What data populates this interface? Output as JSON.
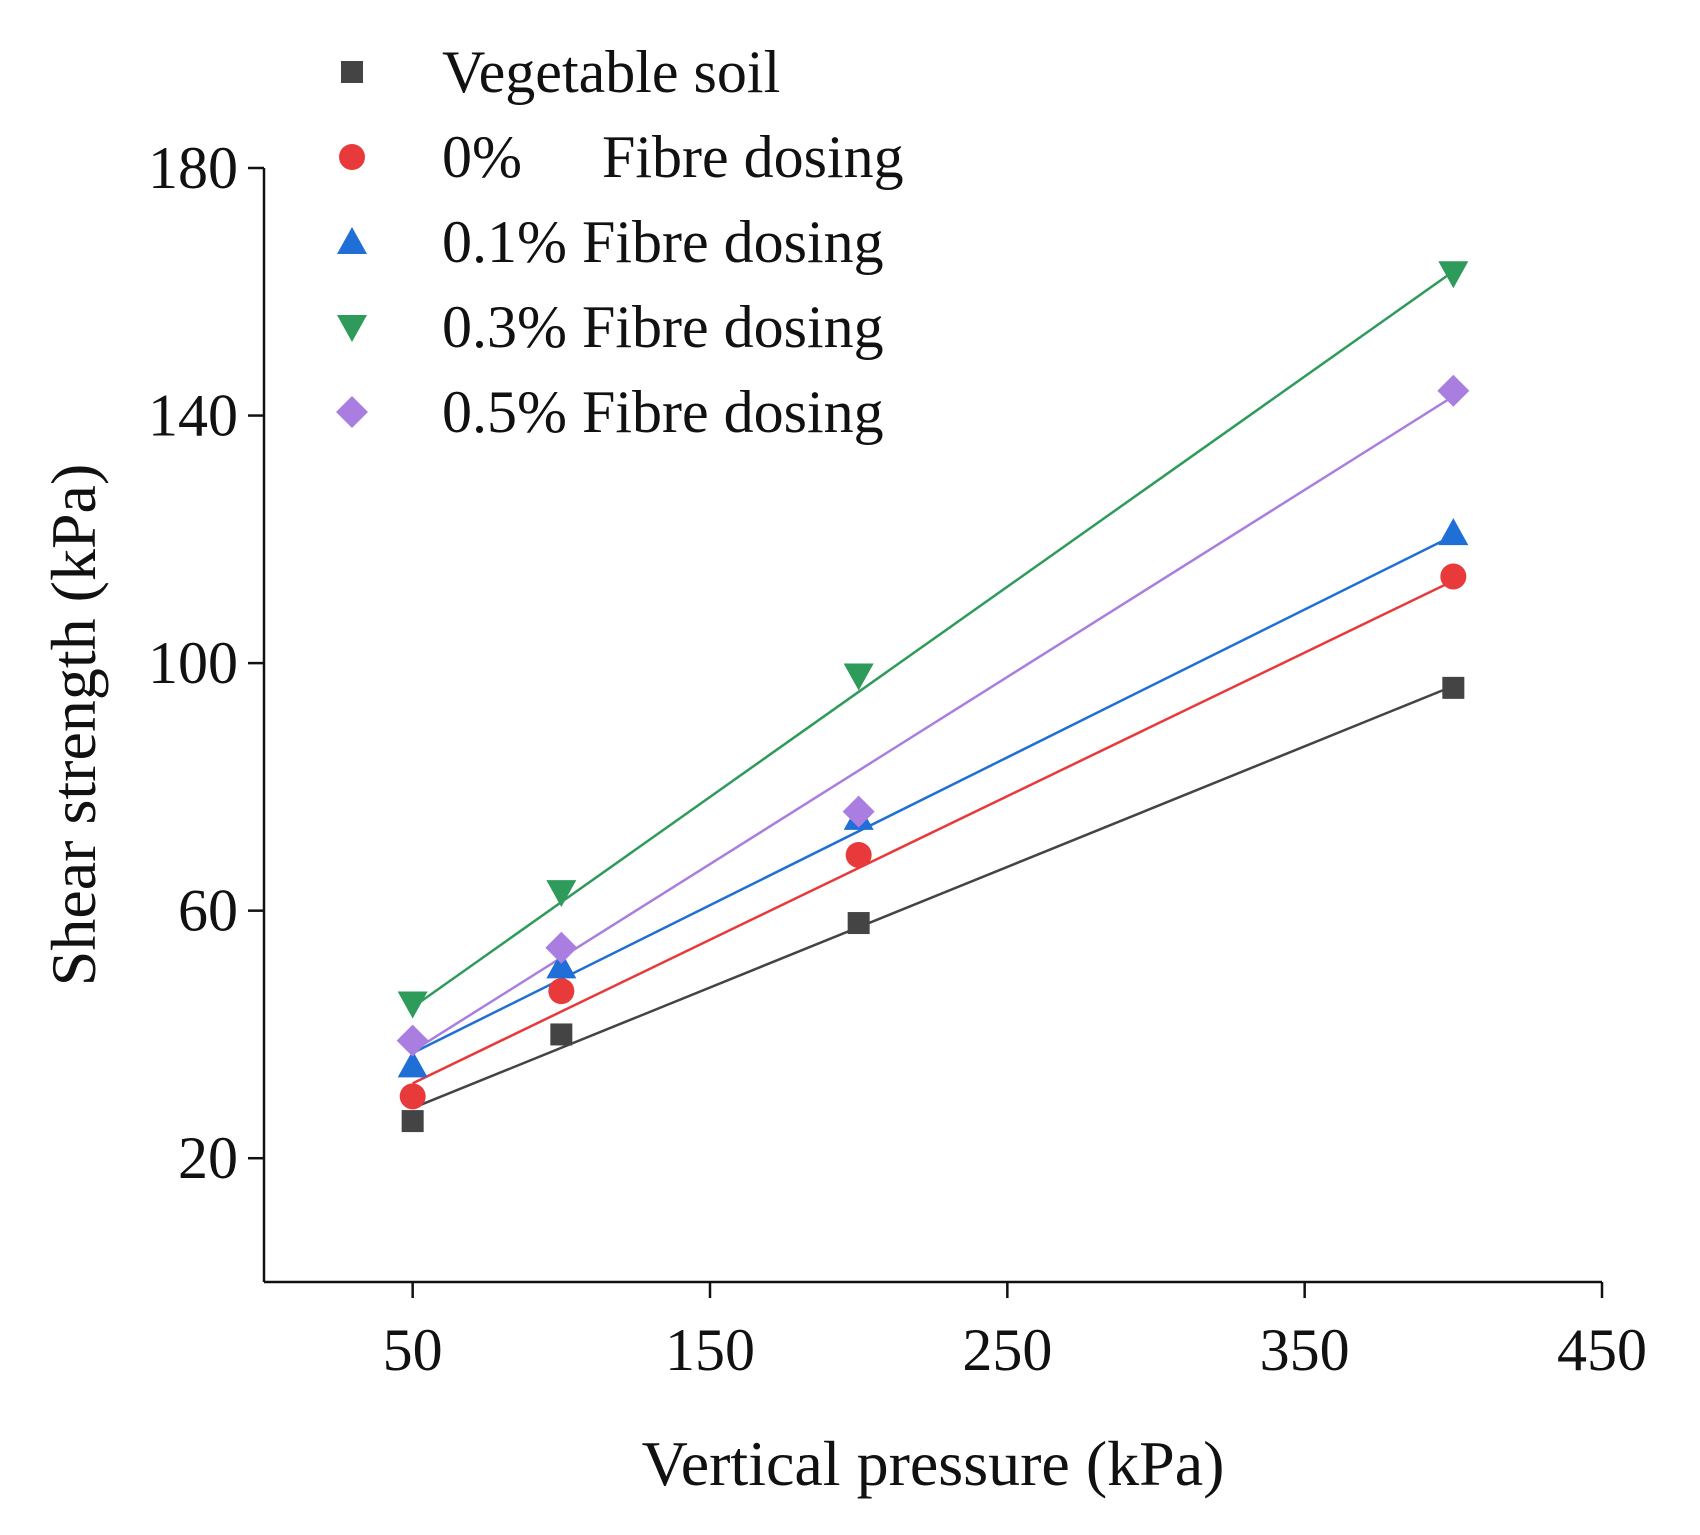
{
  "chart_data": {
    "type": "scatter",
    "title": "",
    "xlabel": "Vertical pressure (kPa)",
    "ylabel": "Shear strength (kPa)",
    "xlim": [
      0,
      450
    ],
    "ylim": [
      0,
      180
    ],
    "xticks": [
      50,
      150,
      250,
      350,
      450
    ],
    "yticks": [
      20,
      60,
      100,
      140,
      180
    ],
    "grid": false,
    "legend_position": "top-left",
    "x": [
      50,
      100,
      200,
      400
    ],
    "series": [
      {
        "name": "Vegetable soil",
        "label_parts": [
          "Vegetable soil"
        ],
        "marker": "square",
        "color": "#444444",
        "values": [
          26,
          40,
          58,
          96
        ],
        "fit": [
          28.1,
          96.3
        ]
      },
      {
        "name": "0% Fibre dosing",
        "label_parts": [
          "0%",
          "Fibre dosing"
        ],
        "marker": "circle",
        "color": "#e8393b",
        "values": [
          30,
          47,
          69,
          114
        ],
        "fit": [
          32.1,
          113.3
        ]
      },
      {
        "name": "0.1% Fibre dosing",
        "label_parts": [
          "0.1% Fibre dosing"
        ],
        "marker": "triangle-up",
        "color": "#1f6fd6",
        "values": [
          35,
          51,
          75,
          121
        ],
        "fit": [
          37.0,
          120.6
        ]
      },
      {
        "name": "0.3% Fibre dosing",
        "label_parts": [
          "0.3% Fibre dosing"
        ],
        "marker": "triangle-down",
        "color": "#2e9b5b",
        "values": [
          45,
          63,
          98,
          163
        ],
        "fit": [
          44.4,
          163.3
        ]
      },
      {
        "name": "0.5% Fibre dosing",
        "label_parts": [
          "0.5% Fibre dosing"
        ],
        "marker": "diamond",
        "color": "#a97ee0",
        "values": [
          39,
          54,
          76,
          144
        ],
        "fit": [
          37.3,
          143.1
        ]
      }
    ]
  }
}
